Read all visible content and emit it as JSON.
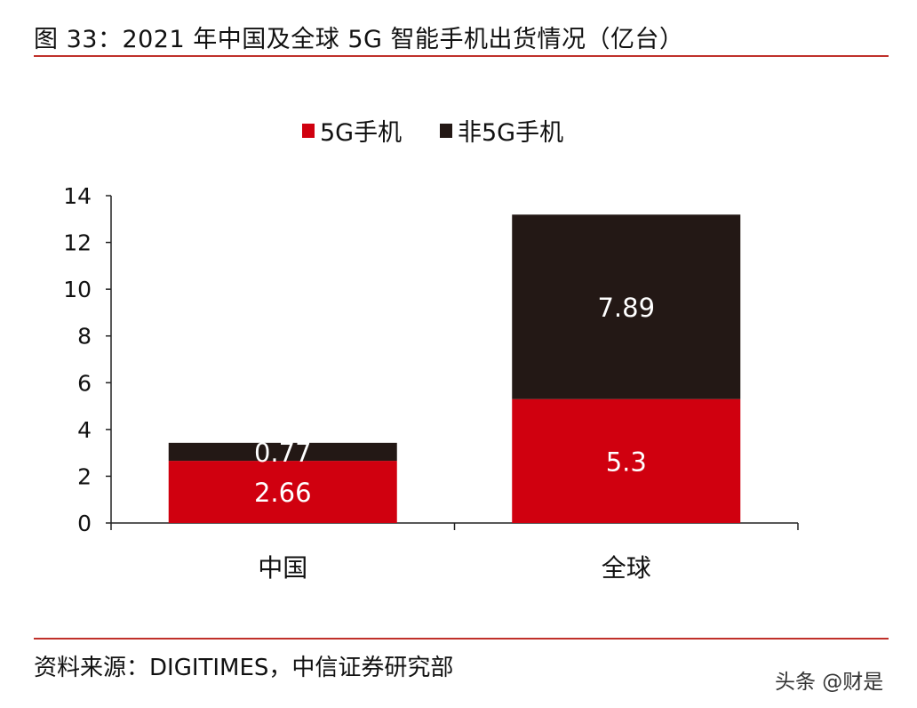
{
  "title": "图 33：2021 年中国及全球 5G 智能手机出货情况（亿台）",
  "source": "资料来源：DIGITIMES，中信证券研究部",
  "watermark": "头条 @财是",
  "chart_data": {
    "type": "bar",
    "stacked": true,
    "categories": [
      "中国",
      "全球"
    ],
    "series": [
      {
        "name": "5G手机",
        "values": [
          2.66,
          5.3
        ],
        "color": "#d0000f"
      },
      {
        "name": "非5G手机",
        "values": [
          0.77,
          7.89
        ],
        "color": "#231815"
      }
    ],
    "data_labels": [
      [
        "2.66",
        "5.3"
      ],
      [
        "0.77",
        "7.89"
      ]
    ],
    "ylim": [
      0,
      14
    ],
    "yticks": [
      "0",
      "2",
      "4",
      "6",
      "8",
      "10",
      "12",
      "14"
    ],
    "grid": false,
    "legend": "top-center"
  }
}
